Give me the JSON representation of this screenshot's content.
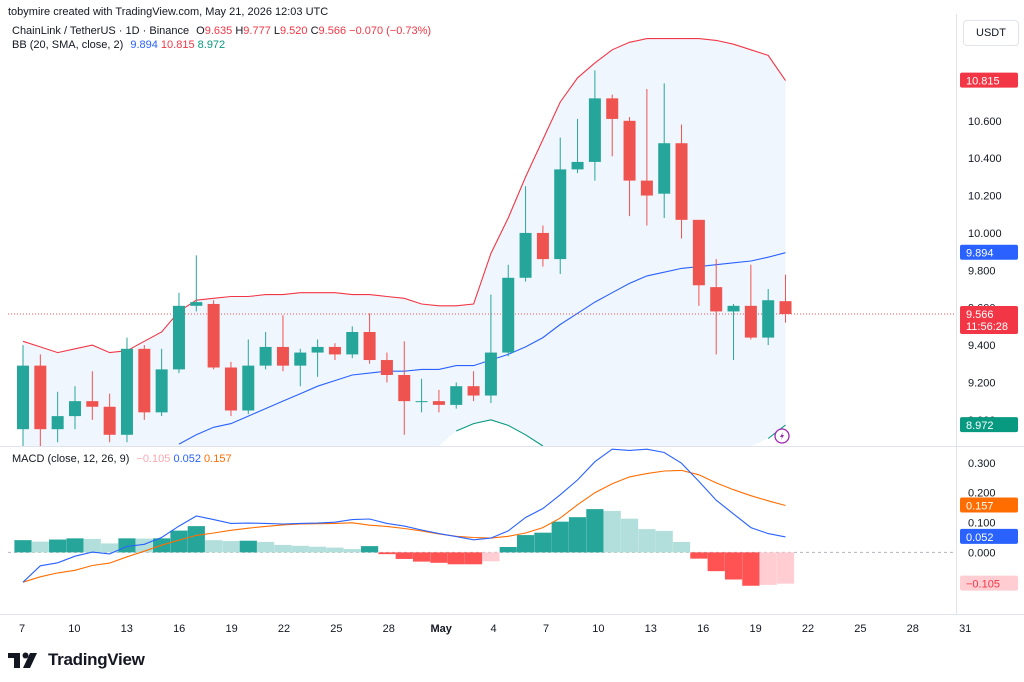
{
  "header": {
    "created_by": "tobymire created with TradingView.com, May 21, 2026 12:03 UTC",
    "symbol": "ChainLink / TetherUS · 1D · Binance",
    "ohlc": {
      "o_label": "O",
      "o": "9.635",
      "h_label": "H",
      "h": "9.777",
      "l_label": "L",
      "l": "9.520",
      "c_label": "C",
      "c": "9.566",
      "change": "−0.070 (−0.73%)"
    },
    "bb_label": "BB (20, SMA, close, 2)",
    "bb_values": [
      "9.894",
      "10.815",
      "8.972"
    ],
    "macd_label": "MACD (close, 12, 26, 9)",
    "macd_values": [
      "−0.105",
      "0.052",
      "0.157"
    ],
    "currency": "USDT",
    "brand": "TradingView"
  },
  "colors": {
    "up": "#26a69a",
    "down": "#ef5350",
    "bb_basis": "#2962ff",
    "bb_upper": "#f23645",
    "bb_lower": "#089981",
    "bb_fill": "#f0f6fd",
    "macd": "#2962ff",
    "signal": "#ff6d00",
    "hist_up_strong": "#26a69a",
    "hist_up_weak": "#b2dfdb",
    "hist_down_strong": "#ff5252",
    "hist_down_weak": "#ffcdd2"
  },
  "chart_data": [
    {
      "type": "candlestick",
      "title": "ChainLink / TetherUS · 1D · Binance",
      "ylim": [
        8.86,
        11.15
      ],
      "y_ticks": [
        "10.600",
        "10.400",
        "10.200",
        "10.000",
        "9.800",
        "9.600",
        "9.400",
        "9.200",
        "9.000"
      ],
      "price_tags": [
        {
          "label": "10.815",
          "value": 10.815,
          "color": "#f23645"
        },
        {
          "label": "9.894",
          "value": 9.894,
          "color": "#2962ff"
        },
        {
          "label": "9.566",
          "sub": "11:56:28",
          "value": 9.566,
          "color": "#f23645"
        },
        {
          "label": "8.972",
          "value": 8.972,
          "color": "#089981"
        }
      ],
      "x_ticks": [
        "7",
        "10",
        "13",
        "16",
        "19",
        "22",
        "25",
        "28",
        "May",
        "4",
        "7",
        "10",
        "13",
        "16",
        "19",
        "22",
        "25",
        "28",
        "31"
      ],
      "candles": [
        {
          "o": 8.95,
          "h": 9.4,
          "l": 8.86,
          "c": 9.29
        },
        {
          "o": 9.29,
          "h": 9.35,
          "l": 8.86,
          "c": 8.95
        },
        {
          "o": 8.95,
          "h": 9.15,
          "l": 8.88,
          "c": 9.02
        },
        {
          "o": 9.02,
          "h": 9.18,
          "l": 8.95,
          "c": 9.1
        },
        {
          "o": 9.1,
          "h": 9.26,
          "l": 9.0,
          "c": 9.07
        },
        {
          "o": 9.07,
          "h": 9.14,
          "l": 8.88,
          "c": 8.92
        },
        {
          "o": 8.92,
          "h": 9.44,
          "l": 8.88,
          "c": 9.38
        },
        {
          "o": 9.38,
          "h": 9.4,
          "l": 9.0,
          "c": 9.04
        },
        {
          "o": 9.04,
          "h": 9.38,
          "l": 9.02,
          "c": 9.27
        },
        {
          "o": 9.27,
          "h": 9.68,
          "l": 9.25,
          "c": 9.61
        },
        {
          "o": 9.61,
          "h": 9.88,
          "l": 9.58,
          "c": 9.63
        },
        {
          "o": 9.62,
          "h": 9.64,
          "l": 9.27,
          "c": 9.28
        },
        {
          "o": 9.28,
          "h": 9.31,
          "l": 9.02,
          "c": 9.05
        },
        {
          "o": 9.05,
          "h": 9.43,
          "l": 9.03,
          "c": 9.29
        },
        {
          "o": 9.29,
          "h": 9.47,
          "l": 9.27,
          "c": 9.39
        },
        {
          "o": 9.39,
          "h": 9.56,
          "l": 9.26,
          "c": 9.29
        },
        {
          "o": 9.29,
          "h": 9.38,
          "l": 9.18,
          "c": 9.36
        },
        {
          "o": 9.36,
          "h": 9.43,
          "l": 9.23,
          "c": 9.39
        },
        {
          "o": 9.39,
          "h": 9.41,
          "l": 9.32,
          "c": 9.35
        },
        {
          "o": 9.35,
          "h": 9.5,
          "l": 9.33,
          "c": 9.47
        },
        {
          "o": 9.47,
          "h": 9.57,
          "l": 9.3,
          "c": 9.32
        },
        {
          "o": 9.32,
          "h": 9.36,
          "l": 9.2,
          "c": 9.24
        },
        {
          "o": 9.24,
          "h": 9.42,
          "l": 8.92,
          "c": 9.1
        },
        {
          "o": 9.1,
          "h": 9.22,
          "l": 9.04,
          "c": 9.1
        },
        {
          "o": 9.1,
          "h": 9.16,
          "l": 9.04,
          "c": 9.08
        },
        {
          "o": 9.08,
          "h": 9.2,
          "l": 9.06,
          "c": 9.18
        },
        {
          "o": 9.18,
          "h": 9.26,
          "l": 9.1,
          "c": 9.13
        },
        {
          "o": 9.13,
          "h": 9.67,
          "l": 9.09,
          "c": 9.36
        },
        {
          "o": 9.36,
          "h": 9.83,
          "l": 9.34,
          "c": 9.76
        },
        {
          "o": 9.76,
          "h": 10.25,
          "l": 9.74,
          "c": 10.0
        },
        {
          "o": 10.0,
          "h": 10.04,
          "l": 9.82,
          "c": 9.86
        },
        {
          "o": 9.86,
          "h": 10.51,
          "l": 9.78,
          "c": 10.34
        },
        {
          "o": 10.34,
          "h": 10.61,
          "l": 10.32,
          "c": 10.38
        },
        {
          "o": 10.38,
          "h": 10.87,
          "l": 10.28,
          "c": 10.72
        },
        {
          "o": 10.72,
          "h": 10.74,
          "l": 10.41,
          "c": 10.61
        },
        {
          "o": 10.6,
          "h": 10.62,
          "l": 10.09,
          "c": 10.28
        },
        {
          "o": 10.28,
          "h": 10.77,
          "l": 10.04,
          "c": 10.2
        },
        {
          "o": 10.21,
          "h": 10.8,
          "l": 10.08,
          "c": 10.48
        },
        {
          "o": 10.48,
          "h": 10.58,
          "l": 9.97,
          "c": 10.07
        },
        {
          "o": 10.07,
          "h": 10.07,
          "l": 9.61,
          "c": 9.72
        },
        {
          "o": 9.71,
          "h": 9.86,
          "l": 9.35,
          "c": 9.58
        },
        {
          "o": 9.58,
          "h": 9.62,
          "l": 9.32,
          "c": 9.61
        },
        {
          "o": 9.61,
          "h": 9.83,
          "l": 9.43,
          "c": 9.44
        },
        {
          "o": 9.44,
          "h": 9.7,
          "l": 9.4,
          "c": 9.64
        },
        {
          "o": 9.635,
          "h": 9.777,
          "l": 9.52,
          "c": 9.566
        }
      ],
      "series": [
        {
          "name": "BB basis",
          "values": [
            null,
            null,
            null,
            null,
            null,
            null,
            null,
            null,
            null,
            8.87,
            8.92,
            8.96,
            8.98,
            9.02,
            9.06,
            9.1,
            9.14,
            9.18,
            9.21,
            9.24,
            9.25,
            9.26,
            9.26,
            9.27,
            9.27,
            9.29,
            9.29,
            9.32,
            9.35,
            9.39,
            9.44,
            9.51,
            9.57,
            9.63,
            9.68,
            9.73,
            9.77,
            9.79,
            9.81,
            9.82,
            9.83,
            9.84,
            9.85,
            9.87,
            9.894
          ]
        },
        {
          "name": "BB upper",
          "values": [
            9.42,
            9.39,
            9.36,
            9.38,
            9.4,
            9.36,
            9.37,
            9.42,
            9.47,
            9.58,
            9.64,
            9.65,
            9.66,
            9.66,
            9.67,
            9.67,
            9.68,
            9.68,
            9.68,
            9.67,
            9.67,
            9.66,
            9.65,
            9.62,
            9.61,
            9.61,
            9.62,
            9.89,
            10.08,
            10.3,
            10.5,
            10.7,
            10.83,
            10.91,
            10.98,
            11.02,
            11.04,
            11.04,
            11.04,
            11.04,
            11.03,
            11.01,
            10.98,
            10.95,
            10.815
          ]
        },
        {
          "name": "BB lower",
          "values": [
            null,
            null,
            null,
            null,
            null,
            null,
            null,
            null,
            null,
            null,
            null,
            null,
            null,
            null,
            null,
            null,
            null,
            null,
            null,
            null,
            null,
            null,
            null,
            null,
            null,
            8.94,
            8.98,
            9.0,
            8.97,
            8.92,
            8.86,
            null,
            null,
            null,
            null,
            null,
            null,
            null,
            null,
            null,
            null,
            null,
            null,
            8.9,
            8.972
          ]
        }
      ]
    },
    {
      "type": "bar",
      "title": "MACD (close, 12, 26, 9)",
      "ylim": [
        -0.2,
        0.35
      ],
      "y_ticks": [
        "0.300",
        "0.200",
        "0.100",
        "0.000"
      ],
      "price_tags": [
        {
          "label": "0.157",
          "value": 0.157,
          "color": "#ff6d00"
        },
        {
          "label": "0.052",
          "value": 0.052,
          "color": "#2962ff"
        },
        {
          "label": "−0.105",
          "value": -0.105,
          "color": "#ffcdd2",
          "text_color": "#f23645"
        }
      ],
      "series": [
        {
          "name": "Histogram",
          "values": [
            0.041,
            0.036,
            0.043,
            0.047,
            0.045,
            0.03,
            0.047,
            0.046,
            0.047,
            0.073,
            0.088,
            0.041,
            0.038,
            0.039,
            0.035,
            0.025,
            0.022,
            0.019,
            0.016,
            0.011,
            0.021,
            -0.006,
            -0.022,
            -0.031,
            -0.035,
            -0.04,
            -0.04,
            -0.03,
            0.018,
            0.058,
            0.066,
            0.103,
            0.118,
            0.145,
            0.139,
            0.113,
            0.078,
            0.072,
            0.035,
            -0.021,
            -0.063,
            -0.091,
            -0.112,
            -0.109,
            -0.105
          ]
        },
        {
          "name": "MACD",
          "values": [
            -0.1,
            -0.045,
            -0.035,
            -0.013,
            0.001,
            -0.005,
            0.02,
            0.027,
            0.05,
            0.088,
            0.122,
            0.11,
            0.097,
            0.098,
            0.097,
            0.095,
            0.097,
            0.098,
            0.101,
            0.11,
            0.112,
            0.097,
            0.088,
            0.075,
            0.063,
            0.053,
            0.042,
            0.048,
            0.072,
            0.117,
            0.147,
            0.193,
            0.243,
            0.304,
            0.346,
            0.342,
            0.346,
            0.335,
            0.299,
            0.238,
            0.175,
            0.129,
            0.083,
            0.063,
            0.052
          ]
        },
        {
          "name": "Signal",
          "values": [
            -0.1,
            -0.082,
            -0.069,
            -0.06,
            -0.044,
            -0.036,
            -0.015,
            0.004,
            0.024,
            0.041,
            0.057,
            0.065,
            0.074,
            0.081,
            0.087,
            0.092,
            0.095,
            0.096,
            0.097,
            0.099,
            0.091,
            0.087,
            0.08,
            0.072,
            0.062,
            0.054,
            0.05,
            0.048,
            0.054,
            0.065,
            0.083,
            0.115,
            0.16,
            0.2,
            0.23,
            0.253,
            0.264,
            0.273,
            0.275,
            0.26,
            0.233,
            0.21,
            0.19,
            0.173,
            0.157
          ]
        }
      ]
    }
  ]
}
